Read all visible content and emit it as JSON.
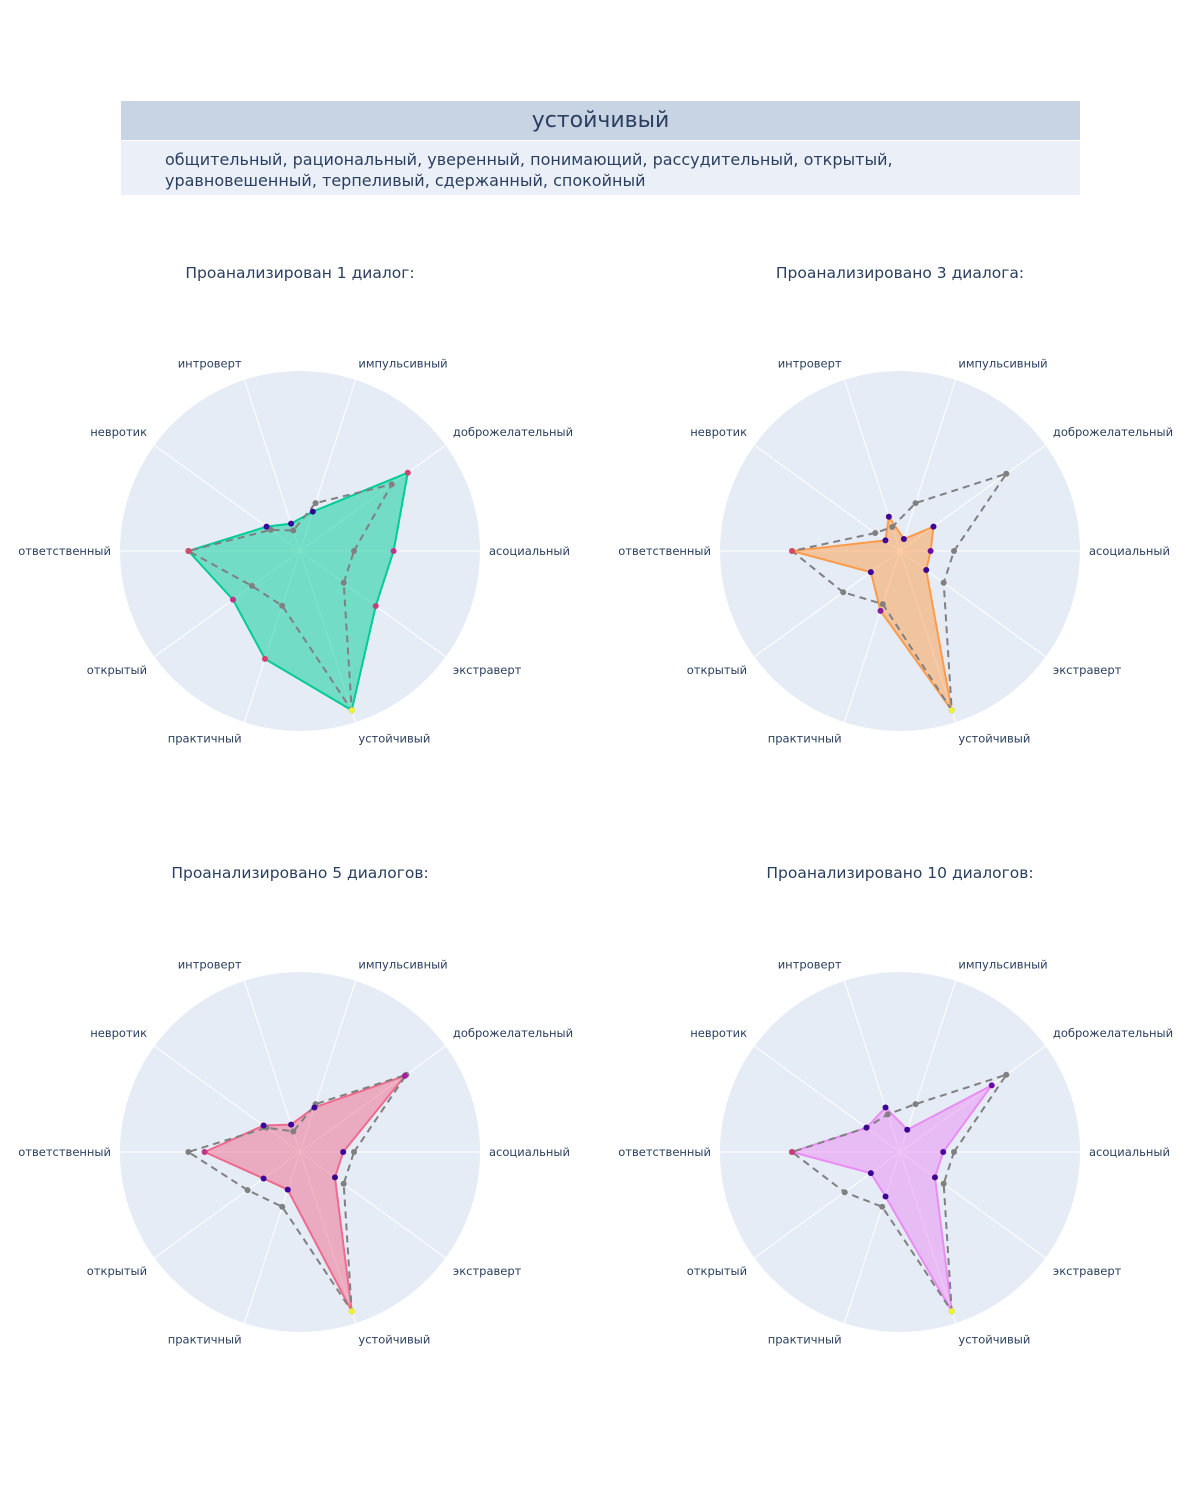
{
  "table": {
    "header": "устойчивый",
    "cell": "общительный, рациональный, уверенный, понимающий, рассудительный, открытый, уравновешенный, терпеливый, сдержанный, спокойный"
  },
  "chart_data": [
    {
      "type": "radar",
      "title": "Проанализирован 1 диалог:",
      "axes": [
        "асоциальный",
        "доброжелательный",
        "импульсивный",
        "интроверт",
        "невротик",
        "ответственный",
        "открытый",
        "практичный",
        "устойчивый",
        "экстраверт"
      ],
      "range": [
        0,
        1
      ],
      "fill_color": "#00cc96",
      "series": [
        {
          "values": [
            0.52,
            0.74,
            0.23,
            0.16,
            0.23,
            0.62,
            0.46,
            0.63,
            0.93,
            0.52
          ]
        },
        {
          "style": "dashed",
          "values": [
            0.3,
            0.63,
            0.28,
            0.12,
            0.2,
            0.62,
            0.33,
            0.32,
            0.93,
            0.3
          ]
        }
      ]
    },
    {
      "type": "radar",
      "title": "Проанализировано 3 диалога:",
      "axes": [
        "асоциальный",
        "доброжелательный",
        "импульсивный",
        "интроверт",
        "невротик",
        "ответственный",
        "открытый",
        "практичный",
        "устойчивый",
        "экстраверт"
      ],
      "range": [
        0,
        1
      ],
      "fill_color": "#fe9b4a",
      "series": [
        {
          "values": [
            0.17,
            0.23,
            0.07,
            0.2,
            0.1,
            0.6,
            0.2,
            0.35,
            0.93,
            0.18
          ]
        },
        {
          "style": "dashed",
          "values": [
            0.3,
            0.73,
            0.28,
            0.14,
            0.17,
            0.6,
            0.39,
            0.31,
            0.93,
            0.3
          ]
        }
      ]
    },
    {
      "type": "radar",
      "title": "Проанализировано 5 диалогов:",
      "axes": [
        "асоциальный",
        "доброжелательный",
        "импульсивный",
        "интроверт",
        "невротик",
        "ответственный",
        "открытый",
        "практичный",
        "устойчивый",
        "экстраверт"
      ],
      "range": [
        0,
        1
      ],
      "fill_color": "#ef6a8c",
      "series": [
        {
          "values": [
            0.24,
            0.72,
            0.26,
            0.16,
            0.25,
            0.53,
            0.25,
            0.22,
            0.93,
            0.24
          ]
        },
        {
          "style": "dashed",
          "values": [
            0.3,
            0.73,
            0.28,
            0.12,
            0.23,
            0.62,
            0.36,
            0.32,
            0.93,
            0.3
          ]
        }
      ]
    },
    {
      "type": "radar",
      "title": "Проанализировано 10 диалогов:",
      "axes": [
        "асоциальный",
        "доброжелательный",
        "импульсивный",
        "интроверт",
        "невротик",
        "ответственный",
        "открытый",
        "практичный",
        "устойчивый",
        "экстраверт"
      ],
      "range": [
        0,
        1
      ],
      "fill_color": "#ea8cf4",
      "series": [
        {
          "values": [
            0.24,
            0.63,
            0.13,
            0.26,
            0.23,
            0.6,
            0.2,
            0.26,
            0.93,
            0.24
          ]
        },
        {
          "style": "dashed",
          "values": [
            0.3,
            0.73,
            0.28,
            0.22,
            0.23,
            0.6,
            0.38,
            0.32,
            0.93,
            0.3
          ]
        }
      ]
    }
  ]
}
